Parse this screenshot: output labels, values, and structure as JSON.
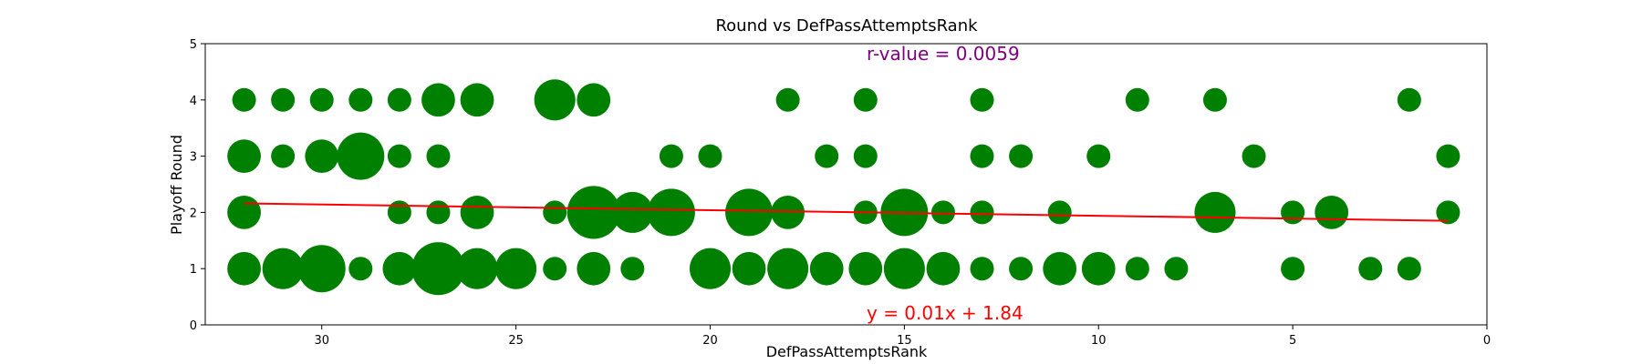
{
  "chart_data": {
    "type": "scatter",
    "title": "Round vs DefPassAttemptsRank",
    "xlabel": "DefPassAttemptsRank",
    "ylabel": "Playoff Round",
    "xlim": [
      33,
      0
    ],
    "ylim": [
      0,
      5
    ],
    "x_inverted": true,
    "xticks": [
      30,
      25,
      20,
      15,
      10,
      5,
      0
    ],
    "yticks": [
      0,
      1,
      2,
      3,
      4,
      5
    ],
    "grid": false,
    "point_color": "#008000",
    "line_color": "#ff0000",
    "annotation_color": "#800080",
    "r_value_text": "r-value = 0.0059",
    "equation_text": "y = 0.01x + 1.84",
    "regression": {
      "slope": 0.01,
      "intercept": 1.84,
      "x_range": [
        32,
        1
      ]
    },
    "points": [
      {
        "x": 32,
        "y": 4,
        "count": 1
      },
      {
        "x": 31,
        "y": 4,
        "count": 1
      },
      {
        "x": 30,
        "y": 4,
        "count": 1
      },
      {
        "x": 29,
        "y": 4,
        "count": 1
      },
      {
        "x": 28,
        "y": 4,
        "count": 1
      },
      {
        "x": 27,
        "y": 4,
        "count": 2
      },
      {
        "x": 26,
        "y": 4,
        "count": 2
      },
      {
        "x": 24,
        "y": 4,
        "count": 3
      },
      {
        "x": 23,
        "y": 4,
        "count": 2
      },
      {
        "x": 18,
        "y": 4,
        "count": 1
      },
      {
        "x": 16,
        "y": 4,
        "count": 1
      },
      {
        "x": 13,
        "y": 4,
        "count": 1
      },
      {
        "x": 9,
        "y": 4,
        "count": 1
      },
      {
        "x": 7,
        "y": 4,
        "count": 1
      },
      {
        "x": 2,
        "y": 4,
        "count": 1
      },
      {
        "x": 32,
        "y": 3,
        "count": 2
      },
      {
        "x": 31,
        "y": 3,
        "count": 1
      },
      {
        "x": 30,
        "y": 3,
        "count": 2
      },
      {
        "x": 29,
        "y": 3,
        "count": 4
      },
      {
        "x": 28,
        "y": 3,
        "count": 1
      },
      {
        "x": 27,
        "y": 3,
        "count": 1
      },
      {
        "x": 21,
        "y": 3,
        "count": 1
      },
      {
        "x": 20,
        "y": 3,
        "count": 1
      },
      {
        "x": 17,
        "y": 3,
        "count": 1
      },
      {
        "x": 16,
        "y": 3,
        "count": 1
      },
      {
        "x": 13,
        "y": 3,
        "count": 1
      },
      {
        "x": 12,
        "y": 3,
        "count": 1
      },
      {
        "x": 10,
        "y": 3,
        "count": 1
      },
      {
        "x": 6,
        "y": 3,
        "count": 1
      },
      {
        "x": 1,
        "y": 3,
        "count": 1
      },
      {
        "x": 32,
        "y": 2,
        "count": 2
      },
      {
        "x": 28,
        "y": 2,
        "count": 1
      },
      {
        "x": 27,
        "y": 2,
        "count": 1
      },
      {
        "x": 26,
        "y": 2,
        "count": 2
      },
      {
        "x": 24,
        "y": 2,
        "count": 1
      },
      {
        "x": 23,
        "y": 2,
        "count": 5
      },
      {
        "x": 22,
        "y": 2,
        "count": 3
      },
      {
        "x": 21,
        "y": 2,
        "count": 4
      },
      {
        "x": 19,
        "y": 2,
        "count": 4
      },
      {
        "x": 18,
        "y": 2,
        "count": 2
      },
      {
        "x": 16,
        "y": 2,
        "count": 1
      },
      {
        "x": 15,
        "y": 2,
        "count": 4
      },
      {
        "x": 14,
        "y": 2,
        "count": 1
      },
      {
        "x": 13,
        "y": 2,
        "count": 1
      },
      {
        "x": 11,
        "y": 2,
        "count": 1
      },
      {
        "x": 7,
        "y": 2,
        "count": 3
      },
      {
        "x": 5,
        "y": 2,
        "count": 1
      },
      {
        "x": 4,
        "y": 2,
        "count": 2
      },
      {
        "x": 1,
        "y": 2,
        "count": 1
      },
      {
        "x": 32,
        "y": 1,
        "count": 2
      },
      {
        "x": 31,
        "y": 1,
        "count": 3
      },
      {
        "x": 30,
        "y": 1,
        "count": 4
      },
      {
        "x": 29,
        "y": 1,
        "count": 1
      },
      {
        "x": 28,
        "y": 1,
        "count": 2
      },
      {
        "x": 27,
        "y": 1,
        "count": 5
      },
      {
        "x": 26,
        "y": 1,
        "count": 3
      },
      {
        "x": 25,
        "y": 1,
        "count": 3
      },
      {
        "x": 24,
        "y": 1,
        "count": 1
      },
      {
        "x": 23,
        "y": 1,
        "count": 2
      },
      {
        "x": 22,
        "y": 1,
        "count": 1
      },
      {
        "x": 20,
        "y": 1,
        "count": 3
      },
      {
        "x": 19,
        "y": 1,
        "count": 2
      },
      {
        "x": 18,
        "y": 1,
        "count": 3
      },
      {
        "x": 17,
        "y": 1,
        "count": 2
      },
      {
        "x": 16,
        "y": 1,
        "count": 2
      },
      {
        "x": 15,
        "y": 1,
        "count": 3
      },
      {
        "x": 14,
        "y": 1,
        "count": 2
      },
      {
        "x": 13,
        "y": 1,
        "count": 1
      },
      {
        "x": 12,
        "y": 1,
        "count": 1
      },
      {
        "x": 11,
        "y": 1,
        "count": 2
      },
      {
        "x": 10,
        "y": 1,
        "count": 2
      },
      {
        "x": 9,
        "y": 1,
        "count": 1
      },
      {
        "x": 8,
        "y": 1,
        "count": 1
      },
      {
        "x": 5,
        "y": 1,
        "count": 1
      },
      {
        "x": 3,
        "y": 1,
        "count": 1
      },
      {
        "x": 2,
        "y": 1,
        "count": 1
      }
    ]
  }
}
